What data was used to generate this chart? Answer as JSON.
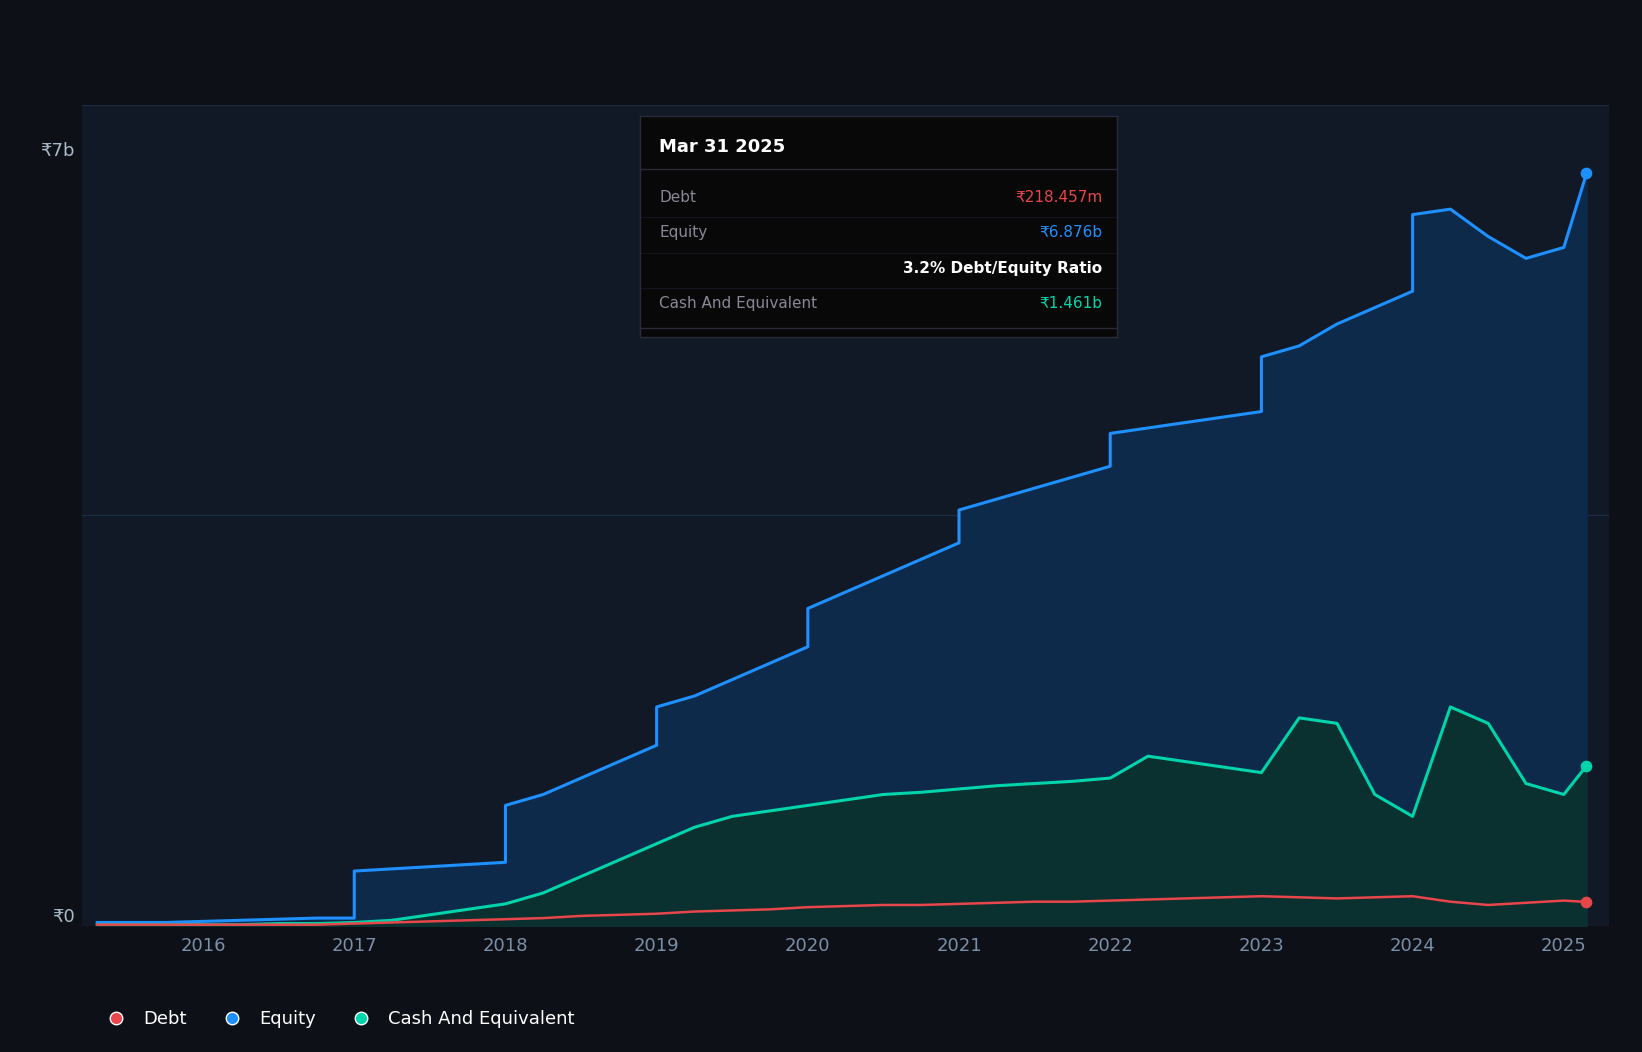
{
  "bg_color": "#0d1117",
  "plot_bg_color": "#111927",
  "grid_color": "#1e2d42",
  "equity_color": "#1e90ff",
  "debt_color": "#e8464a",
  "cash_color": "#00d4aa",
  "equity_fill": "#0d2a4a",
  "cash_fill": "#0a3030",
  "ylabel_text": "₹7b",
  "ylabel0_text": "₹0",
  "tooltip_title": "Mar 31 2025",
  "tooltip_debt_label": "Debt",
  "tooltip_debt_value": "₹218.457m",
  "tooltip_equity_label": "Equity",
  "tooltip_equity_value": "₹6.876b",
  "tooltip_ratio": "3.2% Debt/Equity Ratio",
  "tooltip_cash_label": "Cash And Equivalent",
  "tooltip_cash_value": "₹1.461b",
  "legend_debt": "Debt",
  "legend_equity": "Equity",
  "legend_cash": "Cash And Equivalent",
  "x_years": [
    2015.3,
    2015.5,
    2015.75,
    2016.0,
    2016.25,
    2016.5,
    2016.75,
    2017.0,
    2017.0,
    2017.25,
    2017.5,
    2017.75,
    2018.0,
    2018.0,
    2018.25,
    2018.5,
    2018.75,
    2019.0,
    2019.0,
    2019.25,
    2019.5,
    2019.75,
    2020.0,
    2020.0,
    2020.25,
    2020.5,
    2020.75,
    2021.0,
    2021.0,
    2021.25,
    2021.5,
    2021.75,
    2022.0,
    2022.0,
    2022.25,
    2022.5,
    2022.75,
    2023.0,
    2023.0,
    2023.25,
    2023.5,
    2023.75,
    2024.0,
    2024.0,
    2024.25,
    2024.5,
    2024.75,
    2025.0,
    2025.15
  ],
  "equity_values": [
    0.03,
    0.03,
    0.03,
    0.04,
    0.05,
    0.06,
    0.07,
    0.07,
    0.5,
    0.52,
    0.54,
    0.56,
    0.58,
    1.1,
    1.2,
    1.35,
    1.5,
    1.65,
    2.0,
    2.1,
    2.25,
    2.4,
    2.55,
    2.9,
    3.05,
    3.2,
    3.35,
    3.5,
    3.8,
    3.9,
    4.0,
    4.1,
    4.2,
    4.5,
    4.55,
    4.6,
    4.65,
    4.7,
    5.2,
    5.3,
    5.5,
    5.65,
    5.8,
    6.5,
    6.55,
    6.3,
    6.1,
    6.2,
    6.876
  ],
  "debt_values": [
    0.01,
    0.01,
    0.01,
    0.01,
    0.01,
    0.01,
    0.01,
    0.02,
    0.02,
    0.03,
    0.04,
    0.05,
    0.06,
    0.06,
    0.07,
    0.09,
    0.1,
    0.11,
    0.11,
    0.13,
    0.14,
    0.15,
    0.17,
    0.17,
    0.18,
    0.19,
    0.19,
    0.2,
    0.2,
    0.21,
    0.22,
    0.22,
    0.23,
    0.23,
    0.24,
    0.25,
    0.26,
    0.27,
    0.27,
    0.26,
    0.25,
    0.26,
    0.27,
    0.27,
    0.22,
    0.19,
    0.21,
    0.23,
    0.218
  ],
  "cash_values": [
    0.01,
    0.01,
    0.01,
    0.01,
    0.01,
    0.02,
    0.02,
    0.03,
    0.03,
    0.05,
    0.1,
    0.15,
    0.2,
    0.2,
    0.3,
    0.45,
    0.6,
    0.75,
    0.75,
    0.9,
    1.0,
    1.05,
    1.1,
    1.1,
    1.15,
    1.2,
    1.22,
    1.25,
    1.25,
    1.28,
    1.3,
    1.32,
    1.35,
    1.35,
    1.55,
    1.5,
    1.45,
    1.4,
    1.4,
    1.9,
    1.85,
    1.2,
    1.0,
    1.0,
    2.0,
    1.85,
    1.3,
    1.2,
    1.461
  ],
  "x_ticks": [
    2016,
    2017,
    2018,
    2019,
    2020,
    2021,
    2022,
    2023,
    2024,
    2025
  ],
  "ylim": [
    0,
    7.5
  ],
  "xlim": [
    2015.2,
    2025.3
  ]
}
